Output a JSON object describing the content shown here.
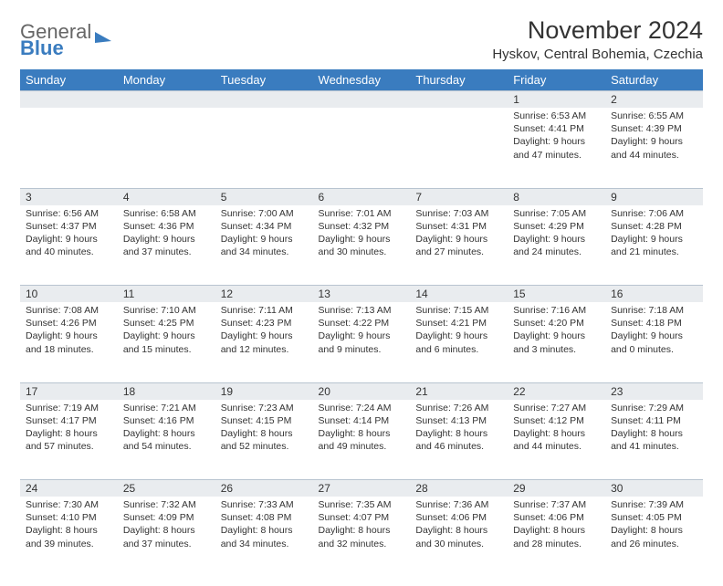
{
  "logo": {
    "line1": "General",
    "line2": "Blue"
  },
  "title": "November 2024",
  "location": "Hyskov, Central Bohemia, Czechia",
  "colors": {
    "header_bg": "#3a7cbf",
    "header_text": "#ffffff",
    "daynum_bg": "#e9ecef",
    "border": "#b8c4d0",
    "text": "#333333",
    "logo_gray": "#666666",
    "logo_blue": "#3a7cbf",
    "page_bg": "#ffffff"
  },
  "fonts": {
    "title_size_pt": 20,
    "location_size_pt": 11,
    "dayheader_size_pt": 10,
    "daynum_size_pt": 9,
    "body_size_pt": 8
  },
  "day_headers": [
    "Sunday",
    "Monday",
    "Tuesday",
    "Wednesday",
    "Thursday",
    "Friday",
    "Saturday"
  ],
  "weeks": [
    [
      null,
      null,
      null,
      null,
      null,
      {
        "n": "1",
        "sr": "6:53 AM",
        "ss": "4:41 PM",
        "dl": "9 hours and 47 minutes."
      },
      {
        "n": "2",
        "sr": "6:55 AM",
        "ss": "4:39 PM",
        "dl": "9 hours and 44 minutes."
      }
    ],
    [
      {
        "n": "3",
        "sr": "6:56 AM",
        "ss": "4:37 PM",
        "dl": "9 hours and 40 minutes."
      },
      {
        "n": "4",
        "sr": "6:58 AM",
        "ss": "4:36 PM",
        "dl": "9 hours and 37 minutes."
      },
      {
        "n": "5",
        "sr": "7:00 AM",
        "ss": "4:34 PM",
        "dl": "9 hours and 34 minutes."
      },
      {
        "n": "6",
        "sr": "7:01 AM",
        "ss": "4:32 PM",
        "dl": "9 hours and 30 minutes."
      },
      {
        "n": "7",
        "sr": "7:03 AM",
        "ss": "4:31 PM",
        "dl": "9 hours and 27 minutes."
      },
      {
        "n": "8",
        "sr": "7:05 AM",
        "ss": "4:29 PM",
        "dl": "9 hours and 24 minutes."
      },
      {
        "n": "9",
        "sr": "7:06 AM",
        "ss": "4:28 PM",
        "dl": "9 hours and 21 minutes."
      }
    ],
    [
      {
        "n": "10",
        "sr": "7:08 AM",
        "ss": "4:26 PM",
        "dl": "9 hours and 18 minutes."
      },
      {
        "n": "11",
        "sr": "7:10 AM",
        "ss": "4:25 PM",
        "dl": "9 hours and 15 minutes."
      },
      {
        "n": "12",
        "sr": "7:11 AM",
        "ss": "4:23 PM",
        "dl": "9 hours and 12 minutes."
      },
      {
        "n": "13",
        "sr": "7:13 AM",
        "ss": "4:22 PM",
        "dl": "9 hours and 9 minutes."
      },
      {
        "n": "14",
        "sr": "7:15 AM",
        "ss": "4:21 PM",
        "dl": "9 hours and 6 minutes."
      },
      {
        "n": "15",
        "sr": "7:16 AM",
        "ss": "4:20 PM",
        "dl": "9 hours and 3 minutes."
      },
      {
        "n": "16",
        "sr": "7:18 AM",
        "ss": "4:18 PM",
        "dl": "9 hours and 0 minutes."
      }
    ],
    [
      {
        "n": "17",
        "sr": "7:19 AM",
        "ss": "4:17 PM",
        "dl": "8 hours and 57 minutes."
      },
      {
        "n": "18",
        "sr": "7:21 AM",
        "ss": "4:16 PM",
        "dl": "8 hours and 54 minutes."
      },
      {
        "n": "19",
        "sr": "7:23 AM",
        "ss": "4:15 PM",
        "dl": "8 hours and 52 minutes."
      },
      {
        "n": "20",
        "sr": "7:24 AM",
        "ss": "4:14 PM",
        "dl": "8 hours and 49 minutes."
      },
      {
        "n": "21",
        "sr": "7:26 AM",
        "ss": "4:13 PM",
        "dl": "8 hours and 46 minutes."
      },
      {
        "n": "22",
        "sr": "7:27 AM",
        "ss": "4:12 PM",
        "dl": "8 hours and 44 minutes."
      },
      {
        "n": "23",
        "sr": "7:29 AM",
        "ss": "4:11 PM",
        "dl": "8 hours and 41 minutes."
      }
    ],
    [
      {
        "n": "24",
        "sr": "7:30 AM",
        "ss": "4:10 PM",
        "dl": "8 hours and 39 minutes."
      },
      {
        "n": "25",
        "sr": "7:32 AM",
        "ss": "4:09 PM",
        "dl": "8 hours and 37 minutes."
      },
      {
        "n": "26",
        "sr": "7:33 AM",
        "ss": "4:08 PM",
        "dl": "8 hours and 34 minutes."
      },
      {
        "n": "27",
        "sr": "7:35 AM",
        "ss": "4:07 PM",
        "dl": "8 hours and 32 minutes."
      },
      {
        "n": "28",
        "sr": "7:36 AM",
        "ss": "4:06 PM",
        "dl": "8 hours and 30 minutes."
      },
      {
        "n": "29",
        "sr": "7:37 AM",
        "ss": "4:06 PM",
        "dl": "8 hours and 28 minutes."
      },
      {
        "n": "30",
        "sr": "7:39 AM",
        "ss": "4:05 PM",
        "dl": "8 hours and 26 minutes."
      }
    ]
  ],
  "labels": {
    "sunrise": "Sunrise:",
    "sunset": "Sunset:",
    "daylight": "Daylight:"
  }
}
